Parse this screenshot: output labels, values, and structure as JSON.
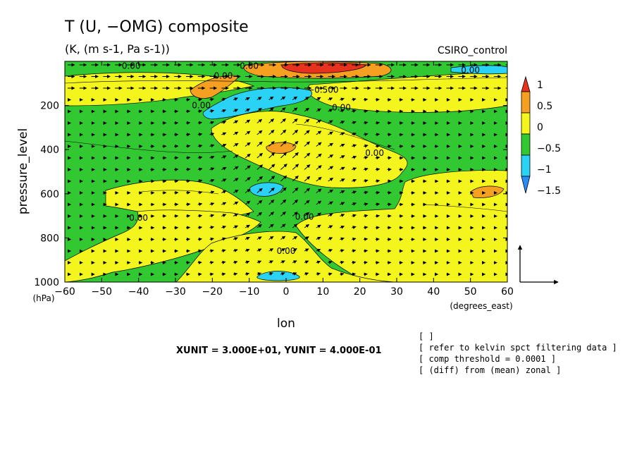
{
  "header": {
    "title": "T (U, −OMG) composite",
    "units": "(K, (m s-1, Pa s-1))",
    "dataset": "CSIRO_control"
  },
  "chart_data": {
    "type": "heatmap",
    "title": "T (U, −OMG) composite",
    "xlabel": "lon",
    "x_unit_label": "(degrees_east)",
    "ylabel": "pressure_level",
    "y_unit_label": "(hPa)",
    "xlim": [
      -60,
      60
    ],
    "ylim": [
      1000,
      0
    ],
    "x_ticks": [
      -60,
      -50,
      -40,
      -30,
      -20,
      -10,
      0,
      10,
      20,
      30,
      40,
      50,
      60
    ],
    "y_ticks": [
      200,
      400,
      600,
      800,
      1000
    ],
    "colorbar": {
      "labels": [
        "1",
        "0.5",
        "0",
        "−0.5",
        "−1",
        "−1.5"
      ],
      "levels": [
        1,
        0.5,
        0,
        -0.5,
        -1,
        -1.5
      ],
      "colors": [
        "#e8321e",
        "#f5a020",
        "#f5f51e",
        "#32c832",
        "#2ad2f5",
        "#2a8cf5"
      ]
    },
    "contour_labels": [
      {
        "text": "0.00",
        "lon": -42,
        "p": 20
      },
      {
        "text": "0.00",
        "lon": -23,
        "p": 200
      },
      {
        "text": "0.00",
        "lon": -17,
        "p": 65
      },
      {
        "text": "0.00",
        "lon": -10,
        "p": 20
      },
      {
        "text": "0.00",
        "lon": 15,
        "p": 210
      },
      {
        "text": "−0.500",
        "lon": 10,
        "p": 130
      },
      {
        "text": "0.00",
        "lon": 24,
        "p": 415
      },
      {
        "text": "0.00",
        "lon": 5,
        "p": 705
      },
      {
        "text": "0.00",
        "lon": 0,
        "p": 860
      },
      {
        "text": "0.00",
        "lon": -40,
        "p": 710
      },
      {
        "text": "0.00",
        "lon": 50,
        "p": 40
      }
    ],
    "vector_units": {
      "xunit": "XUNIT = 3.000E+01, YUNIT = 4.000E-01"
    }
  },
  "notes": [
    "[  ]",
    "[ refer to kelvin spct filtering data ]",
    "[ comp threshold = 0.0001 ]",
    "[ (diff) from (mean) zonal ]"
  ]
}
